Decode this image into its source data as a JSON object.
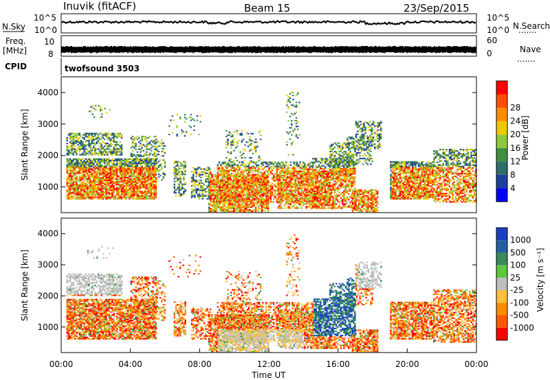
{
  "header": {
    "station": "Inuvik (fitACF)",
    "beam": "Beam 15",
    "date": "23/Sep/2015"
  },
  "strip_panels": {
    "nsky_label": "N.Sky",
    "nsearch_label": "N.Search",
    "left_ticks_top": [
      "10^5",
      "10^0"
    ],
    "right_ticks_top": [
      "10^5",
      "10^0"
    ],
    "freq_label": "Freq.",
    "freq_unit": "[MHz]",
    "freq_ticks": [
      "10",
      "8"
    ],
    "nave_label": "Nave",
    "nave_ticks": [
      "60",
      "0"
    ],
    "cpid_label": "CPID",
    "cpid_value": "twofsound 3503",
    "legend_dots": "......."
  },
  "colors": {
    "power": [
      "#0000ff",
      "#1e3f9e",
      "#2e6e6a",
      "#3f8f3f",
      "#8fc83a",
      "#f0c800",
      "#ff8c00",
      "#ff5000",
      "#ff0000"
    ],
    "velocity": [
      "#1a3fc0",
      "#2060a0",
      "#3a8a5a",
      "#5cc83c",
      "#bebebe",
      "#ffbe3c",
      "#ff8c00",
      "#ff5a00",
      "#ff0000"
    ]
  },
  "chart_data": [
    {
      "type": "heatmap",
      "panel": "power",
      "ylabel": "Slant Range [km]",
      "yticks": [
        "1000",
        "2000",
        "3000",
        "4000"
      ],
      "ylim": [
        180,
        4500
      ],
      "colorbar_label": "Power [dB]",
      "colorbar_ticks": [
        "4",
        "8",
        "12",
        "16",
        "20",
        "24",
        "28"
      ]
    },
    {
      "type": "heatmap",
      "panel": "velocity",
      "ylabel": "Slant Range [km]",
      "yticks": [
        "1000",
        "2000",
        "3000",
        "4000"
      ],
      "ylim": [
        180,
        4500
      ],
      "colorbar_label": "Velocity [m s⁻¹]",
      "colorbar_ticks": [
        "1000",
        "500",
        "100",
        "25",
        "-25",
        "-100",
        "-500",
        "-1000"
      ]
    }
  ],
  "xaxis": {
    "ticks": [
      "00:00",
      "04:00",
      "08:00",
      "12:00",
      "16:00",
      "20:00",
      "00:00"
    ],
    "label": "Time UT",
    "xlim_hours": [
      0,
      24
    ]
  }
}
